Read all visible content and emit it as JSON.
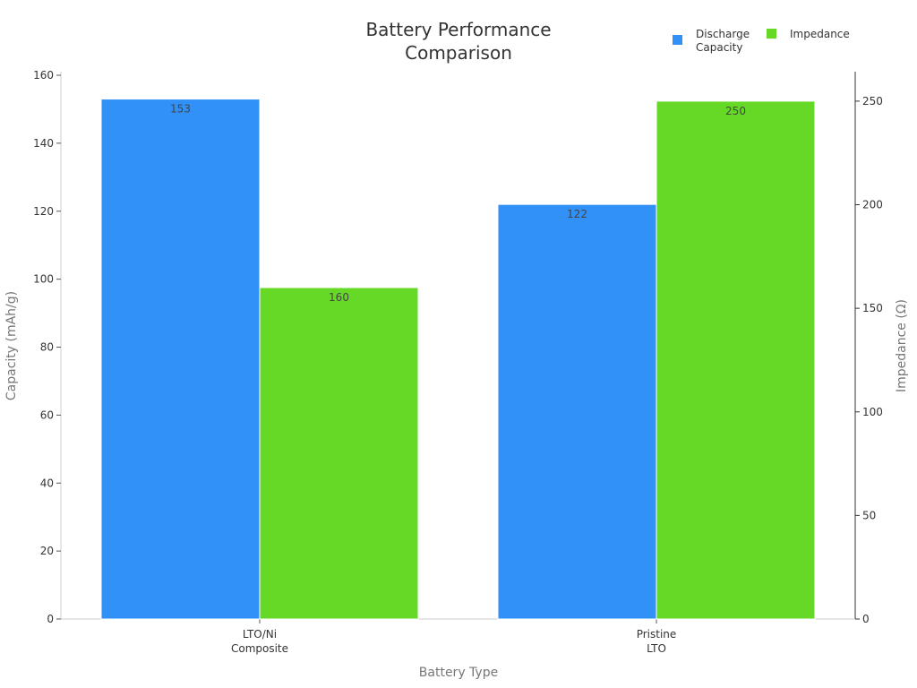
{
  "chart_data": {
    "type": "bar",
    "title": [
      "Battery Performance",
      "Comparison"
    ],
    "xlabel": "Battery Type",
    "ylabel_left": "Capacity (mAh/g)",
    "ylabel_right": "Impedance (Ω)",
    "categories": [
      [
        "LTO/Ni",
        "Composite"
      ],
      [
        "Pristine",
        "LTO"
      ]
    ],
    "series": [
      {
        "name": [
          "Discharge",
          "Capacity"
        ],
        "axis": "left",
        "color": "#3191f7",
        "values": [
          153,
          122
        ]
      },
      {
        "name": [
          "Impedance"
        ],
        "axis": "right",
        "color": "#66d927",
        "values": [
          160,
          250
        ]
      }
    ],
    "ylim_left": [
      0,
      160
    ],
    "yticks_left": [
      0,
      20,
      40,
      60,
      80,
      100,
      120,
      140,
      160
    ],
    "ylim_right": [
      0,
      262.5
    ],
    "yticks_right": [
      0,
      50,
      100,
      150,
      200,
      250
    ],
    "grid": false,
    "legend_position": "top-right"
  }
}
